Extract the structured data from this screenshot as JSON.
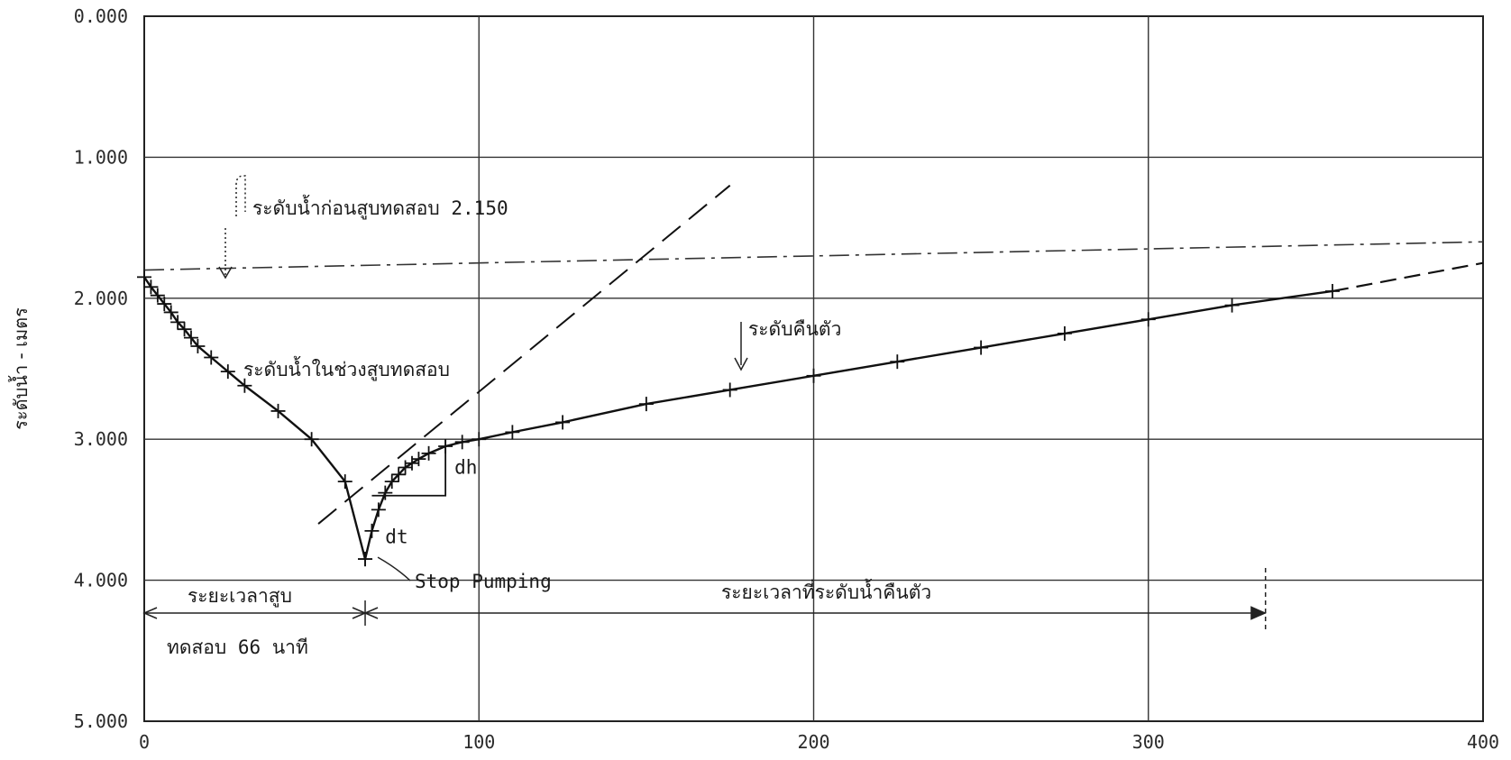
{
  "chart_data": {
    "type": "line",
    "title": "",
    "xlabel": "",
    "ylabel": "ระดับน้ำ - เมตร",
    "xlim": [
      0,
      400
    ],
    "ylim": [
      0,
      5
    ],
    "y_inverted": true,
    "grid": true,
    "x_ticks": [
      "0",
      "100",
      "200",
      "300",
      "400"
    ],
    "y_ticks": [
      "0.000",
      "1.000",
      "2.000",
      "3.000",
      "4.000",
      "5.000"
    ],
    "series": [
      {
        "name": "ระดับน้ำในช่วงสูบทดสอบ",
        "style": "solid",
        "x": [
          0,
          2,
          4,
          6,
          8,
          10,
          12,
          14,
          16,
          20,
          25,
          30,
          40,
          50,
          60,
          66
        ],
        "y": [
          1.85,
          1.92,
          1.98,
          2.04,
          2.1,
          2.17,
          2.22,
          2.28,
          2.34,
          2.42,
          2.52,
          2.62,
          2.8,
          3.0,
          3.3,
          3.85
        ]
      },
      {
        "name": "ระดับคืนตัว",
        "style": "solid",
        "x": [
          66,
          68,
          70,
          72,
          74,
          76,
          78,
          80,
          82,
          85,
          90,
          95,
          100,
          110,
          125,
          150,
          175,
          200,
          225,
          250,
          275,
          300,
          325,
          355
        ],
        "y": [
          3.85,
          3.65,
          3.5,
          3.38,
          3.3,
          3.25,
          3.2,
          3.17,
          3.14,
          3.1,
          3.05,
          3.02,
          3.0,
          2.95,
          2.88,
          2.75,
          2.65,
          2.55,
          2.45,
          2.35,
          2.25,
          2.15,
          2.05,
          1.95
        ]
      }
    ],
    "reference_level": {
      "label": "ระดับน้ำก่อนสูบทดสอบ",
      "value_text": "2.150"
    },
    "annotations": {
      "pumping_label": "ระดับน้ำในช่วงสูบทดสอบ",
      "recovery_label": "ระดับคืนตัว",
      "dh": "dh",
      "dt": "dt",
      "stop": "Stop Pumping",
      "pump_duration_1": "ระยะเวลาสูบ",
      "pump_duration_2": "ทดสอบ 66 นาที",
      "recovery_duration": "ระยะเวลาที่ระดับน้ำคืนตัว"
    }
  }
}
